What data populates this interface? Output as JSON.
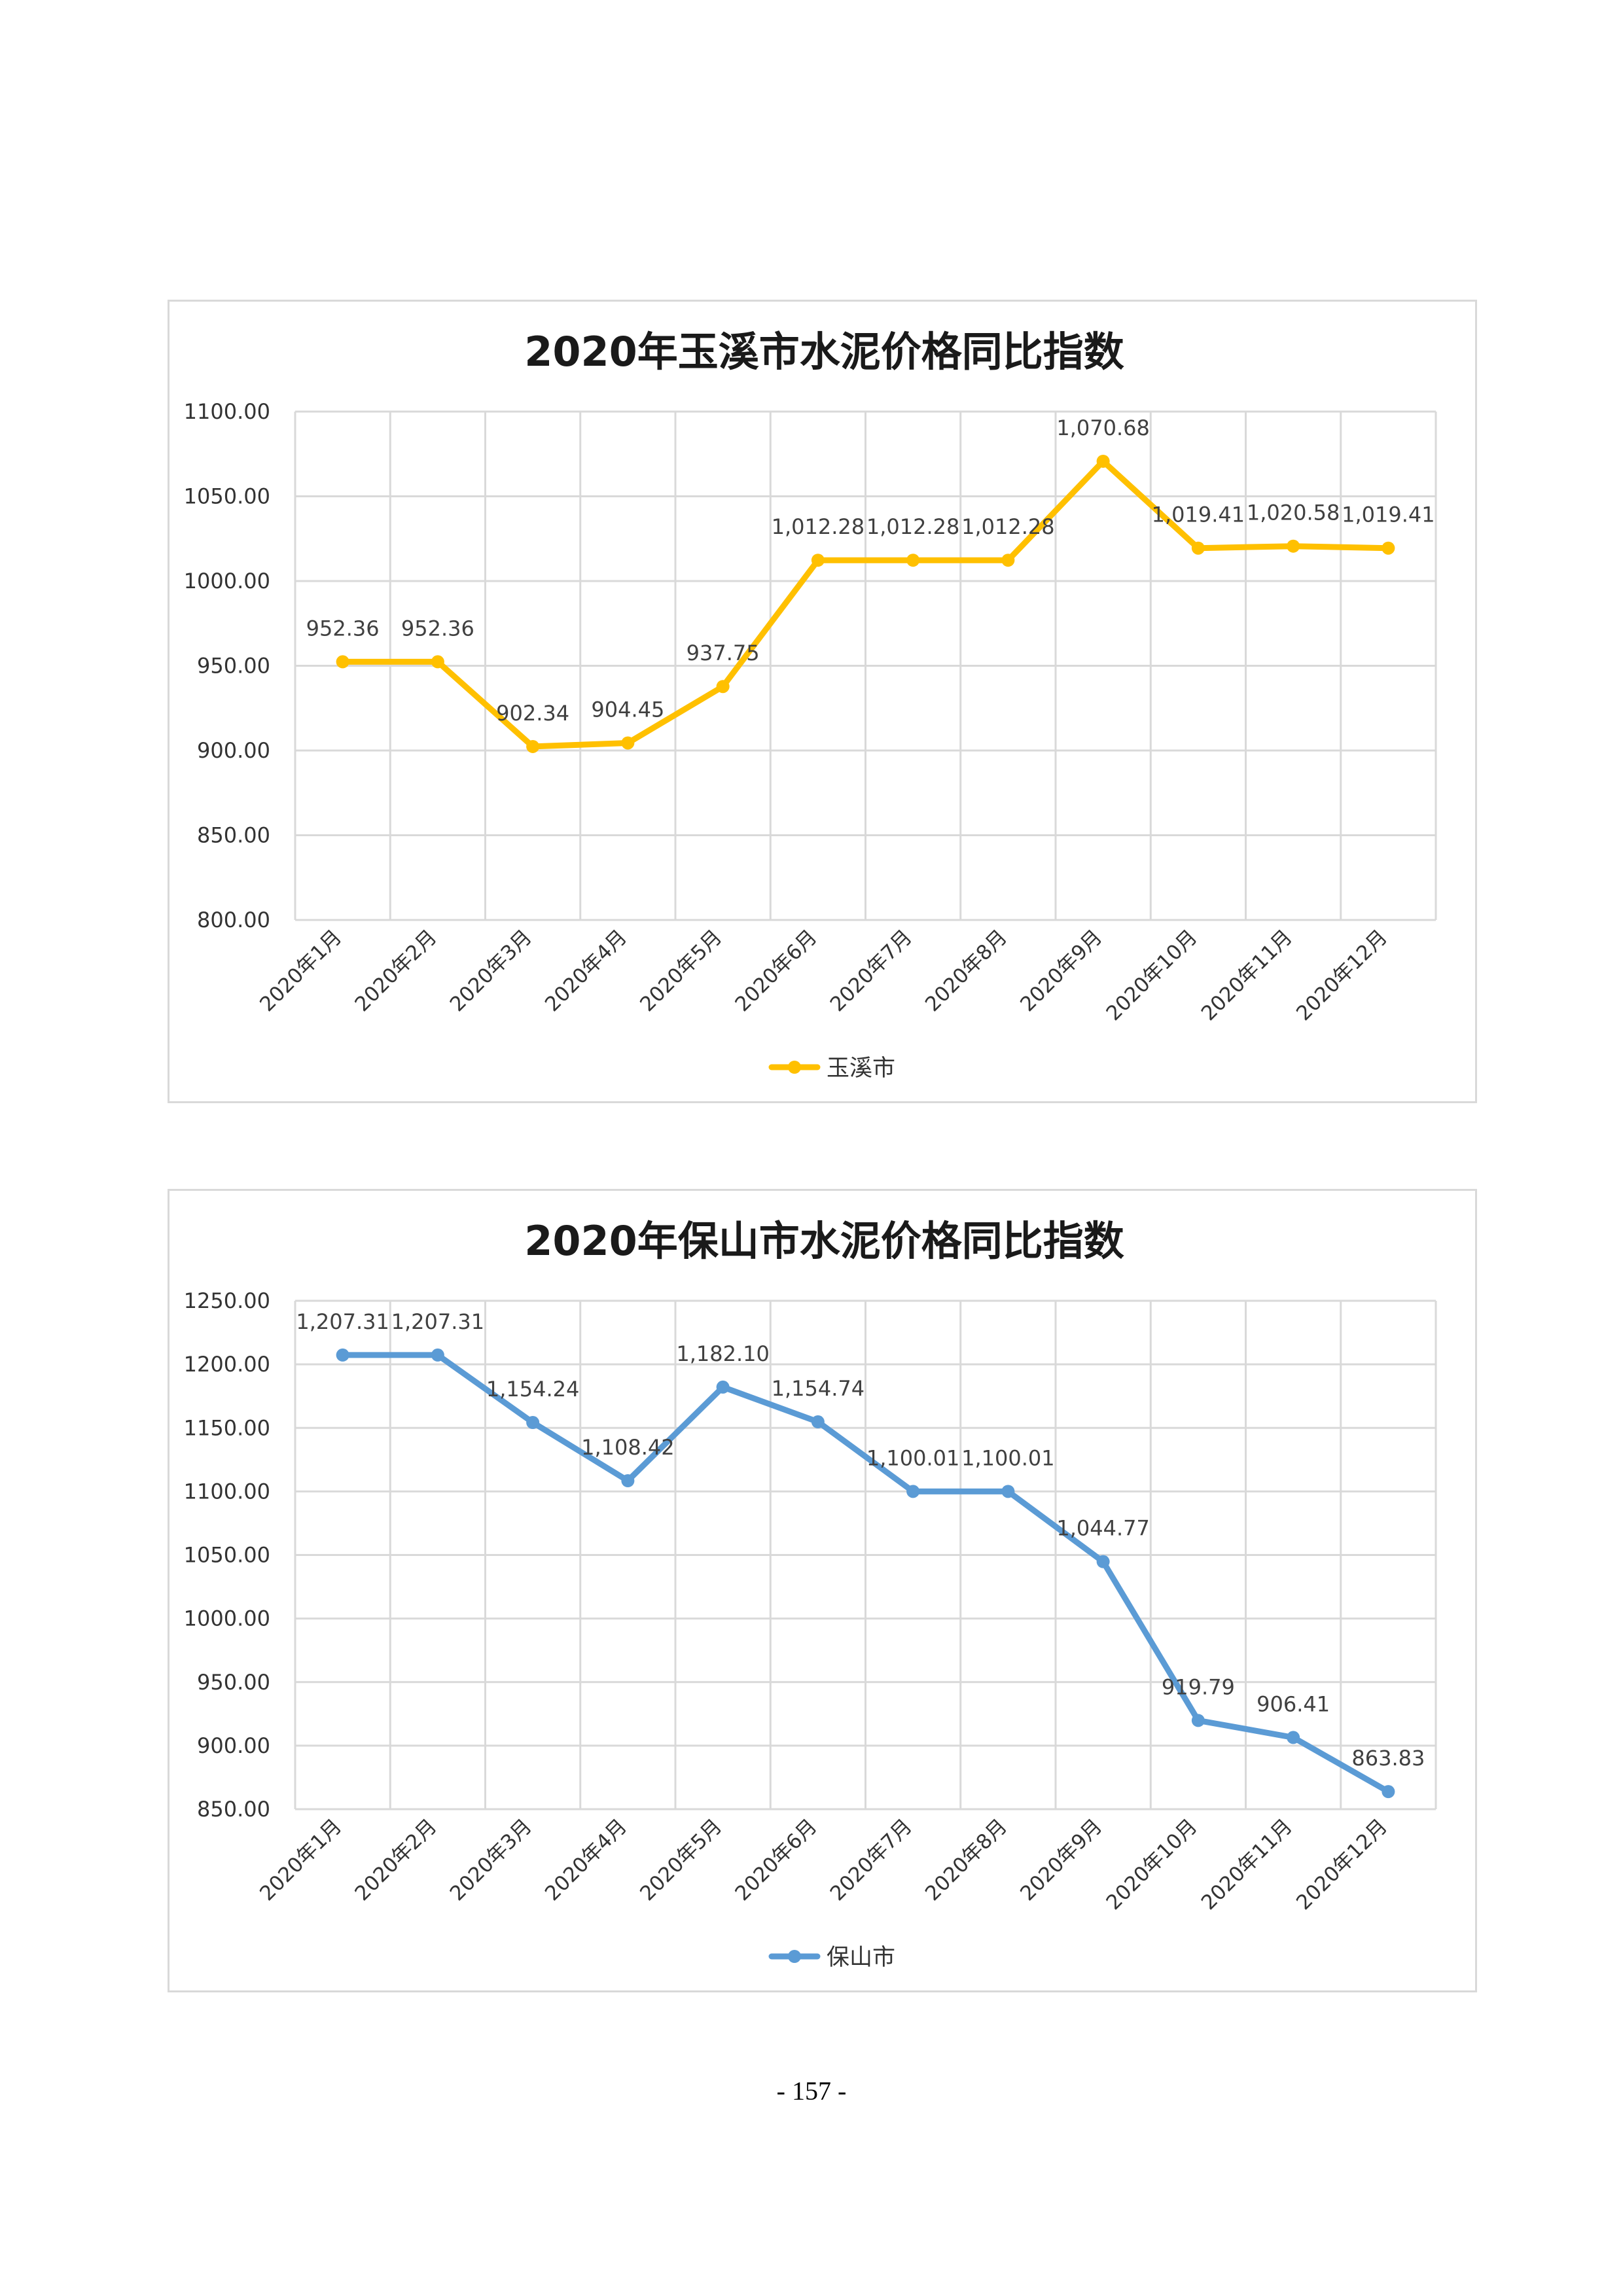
{
  "chart_data": [
    {
      "type": "line",
      "title": "2020年玉溪市水泥价格同比指数",
      "categories": [
        "2020年1月",
        "2020年2月",
        "2020年3月",
        "2020年4月",
        "2020年5月",
        "2020年6月",
        "2020年7月",
        "2020年8月",
        "2020年9月",
        "2020年10月",
        "2020年11月",
        "2020年12月"
      ],
      "series": [
        {
          "name": "玉溪市",
          "values": [
            952.36,
            952.36,
            902.34,
            904.45,
            937.75,
            1012.28,
            1012.28,
            1012.28,
            1070.68,
            1019.41,
            1020.58,
            1019.41
          ]
        }
      ],
      "data_labels": [
        "952.36",
        "952.36",
        "902.34",
        "904.45",
        "937.75",
        "1,012.28",
        "1,012.28",
        "1,012.28",
        "1,070.68",
        "1,019.41",
        "1,020.58",
        "1,019.41"
      ],
      "y_ticks": [
        "800.00",
        "850.00",
        "900.00",
        "950.00",
        "1000.00",
        "1050.00",
        "1100.00"
      ],
      "ylim": [
        800,
        1100
      ],
      "color": "#FFC000",
      "grid": true,
      "legend": "bottom",
      "xlabel": "",
      "ylabel": ""
    },
    {
      "type": "line",
      "title": "2020年保山市水泥价格同比指数",
      "categories": [
        "2020年1月",
        "2020年2月",
        "2020年3月",
        "2020年4月",
        "2020年5月",
        "2020年6月",
        "2020年7月",
        "2020年8月",
        "2020年9月",
        "2020年10月",
        "2020年11月",
        "2020年12月"
      ],
      "series": [
        {
          "name": "保山市",
          "values": [
            1207.31,
            1207.31,
            1154.24,
            1108.42,
            1182.1,
            1154.74,
            1100.01,
            1100.01,
            1044.77,
            919.79,
            906.41,
            863.83
          ]
        }
      ],
      "data_labels": [
        "1,207.31",
        "1,207.31",
        "1,154.24",
        "1,108.42",
        "1,182.10",
        "1,154.74",
        "1,100.01",
        "1,100.01",
        "1,044.77",
        "919.79",
        "906.41",
        "863.83"
      ],
      "y_ticks": [
        "850.00",
        "900.00",
        "950.00",
        "1000.00",
        "1050.00",
        "1100.00",
        "1150.00",
        "1200.00",
        "1250.00"
      ],
      "ylim": [
        850,
        1250
      ],
      "color": "#5B9BD5",
      "grid": true,
      "legend": "bottom",
      "xlabel": "",
      "ylabel": ""
    }
  ],
  "page": {
    "number": "- 157 -"
  }
}
